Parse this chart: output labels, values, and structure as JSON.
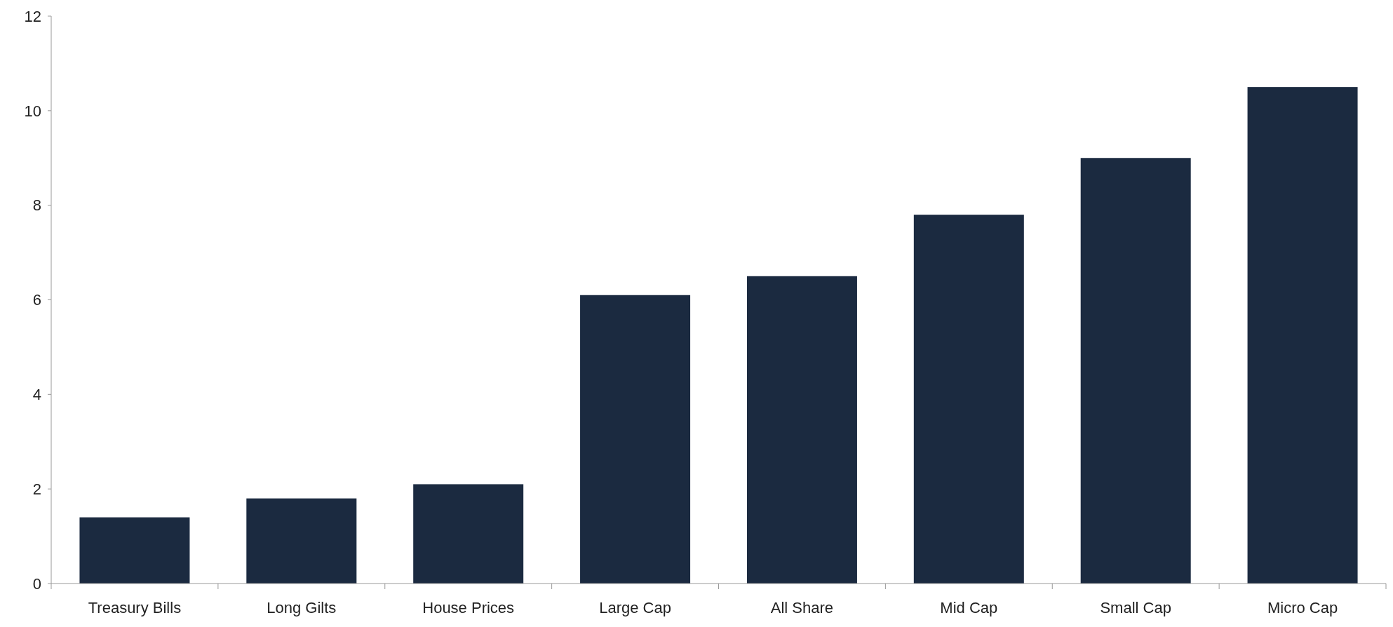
{
  "chart_data": {
    "type": "bar",
    "categories": [
      "Treasury Bills",
      "Long Gilts",
      "House Prices",
      "Large Cap",
      "All Share",
      "Mid Cap",
      "Small Cap",
      "Micro Cap"
    ],
    "values": [
      1.4,
      1.8,
      2.1,
      6.1,
      6.5,
      7.8,
      9.0,
      10.5
    ],
    "color": "#1b2a40",
    "ylim": [
      0,
      12
    ],
    "yticks": [
      0,
      2,
      4,
      6,
      8,
      10,
      12
    ],
    "grid": false
  }
}
